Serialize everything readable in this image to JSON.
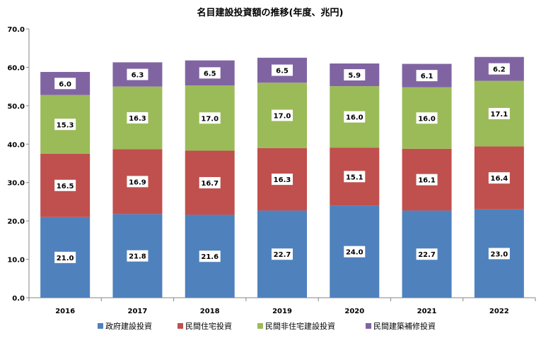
{
  "chart_data": {
    "type": "bar",
    "stacked": true,
    "title": "名目建設投資額の推移(年度、兆円)",
    "xlabel": "",
    "ylabel": "",
    "ylim": [
      0,
      70
    ],
    "yticks": [
      "0.0",
      "10.0",
      "20.0",
      "30.0",
      "40.0",
      "50.0",
      "60.0",
      "70.0"
    ],
    "grid": false,
    "legend_position": "bottom",
    "categories": [
      "2016",
      "2017",
      "2018",
      "2019",
      "2020",
      "2021",
      "2022"
    ],
    "series": [
      {
        "name": "政府建設投資",
        "color": "#4f81bd",
        "values": [
          21.0,
          21.8,
          21.6,
          22.7,
          24.0,
          22.7,
          23.0
        ],
        "labels": [
          "21.0",
          "21.8",
          "21.6",
          "22.7",
          "24.0",
          "22.7",
          "23.0"
        ]
      },
      {
        "name": "民間住宅投資",
        "color": "#c0504d",
        "values": [
          16.5,
          16.9,
          16.7,
          16.3,
          15.1,
          16.1,
          16.4
        ],
        "labels": [
          "16.5",
          "16.9",
          "16.7",
          "16.3",
          "15.1",
          "16.1",
          "16.4"
        ]
      },
      {
        "name": "民間非住宅建設投資",
        "color": "#9bbb59",
        "values": [
          15.3,
          16.3,
          17.0,
          17.0,
          16.0,
          16.0,
          17.1
        ],
        "labels": [
          "15.3",
          "16.3",
          "17.0",
          "17.0",
          "16.0",
          "16.0",
          "17.1"
        ]
      },
      {
        "name": "民間建築補修投資",
        "color": "#8064a2",
        "values": [
          6.0,
          6.3,
          6.5,
          6.5,
          5.9,
          6.1,
          6.2
        ],
        "labels": [
          "6.0",
          "6.3",
          "6.5",
          "6.5",
          "5.9",
          "6.1",
          "6.2"
        ]
      }
    ]
  }
}
